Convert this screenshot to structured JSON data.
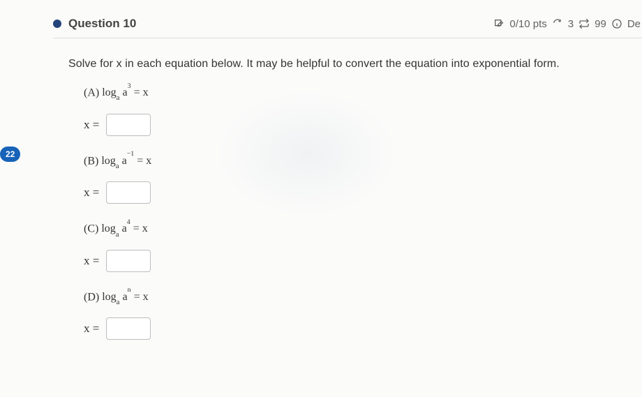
{
  "page_badge": "22",
  "header": {
    "title": "Question 10",
    "score": "0/10 pts",
    "attempts_left": "3",
    "time_or_count": "99",
    "right_trailing": "De"
  },
  "stem": "Solve for x in each equation below. It may be helpful to convert the equation into exponential form.",
  "parts": {
    "a": {
      "label": "(A) ",
      "expr_html": "log<sub>a</sub> a<sup>3</sup> = x"
    },
    "b": {
      "label": "(B) ",
      "expr_html": "log<sub>a</sub> a<sup>−1</sup> = x"
    },
    "c": {
      "label": "(C) ",
      "expr_html": "log<sub>a</sub> a<sup>4</sup> = x"
    },
    "d": {
      "label": "(D) ",
      "expr_html": "log<sub>a</sub> a<sup>n</sup> = x"
    }
  },
  "answer_prefix": "x =",
  "colors": {
    "bullet": "#24447a",
    "badge_bg": "#1763b8",
    "border": "#dcdcdc",
    "text": "#2d2d2d",
    "muted": "#626262"
  }
}
